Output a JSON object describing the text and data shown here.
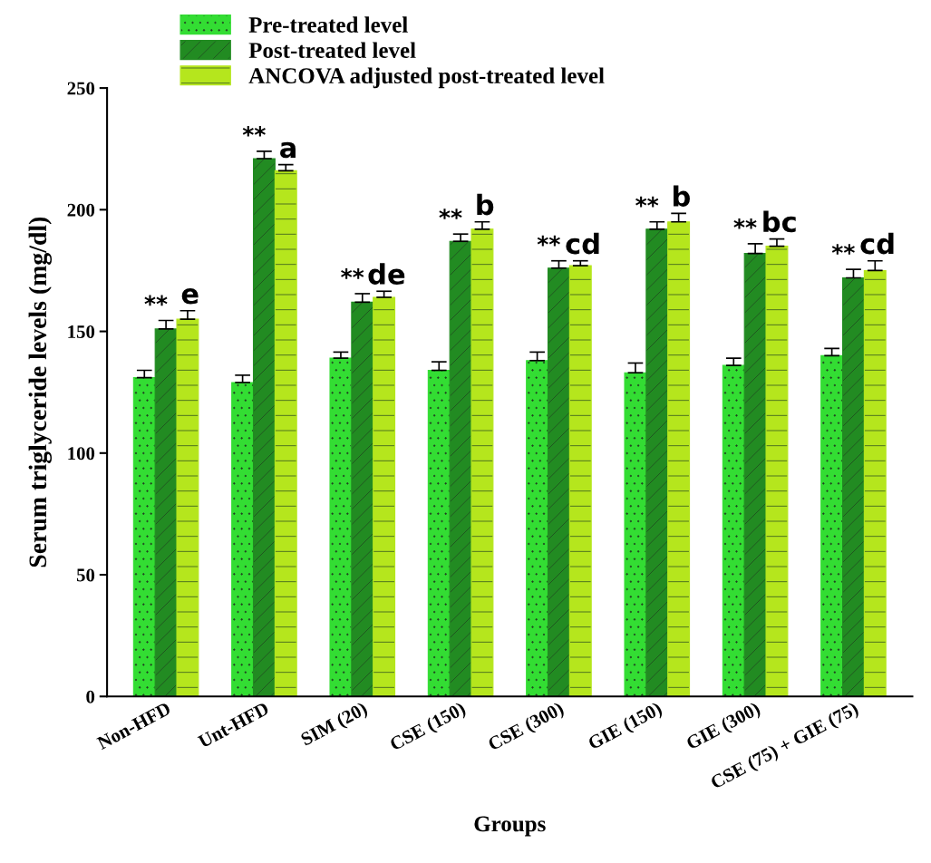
{
  "chart_data": {
    "type": "bar",
    "xlabel": "Groups",
    "ylabel": "Serum triglyceride levels (mg/dl)",
    "categories": [
      "Non-HFD",
      "Unt-HFD",
      "SIM (20)",
      "CSE (150)",
      "CSE (300)",
      "GIE (150)",
      "GIE (300)",
      "CSE (75) + GIE (75)"
    ],
    "series": [
      {
        "name": "Pre-treated level",
        "color": "#33dd33",
        "values": [
          131,
          129,
          139,
          134,
          138,
          133,
          136,
          140
        ],
        "errors": [
          3,
          3,
          2.5,
          3.5,
          3.5,
          4,
          3,
          3
        ]
      },
      {
        "name": "Post-treated level",
        "color": "#228b22",
        "values": [
          151,
          221,
          162,
          187,
          176,
          192,
          182,
          172
        ],
        "errors": [
          3.5,
          3,
          3.5,
          3,
          3,
          3,
          4,
          3.5
        ]
      },
      {
        "name": "ANCOVA adjusted post-treated level",
        "color": "#b5e61d",
        "values": [
          155,
          216,
          164,
          192,
          177,
          195,
          185,
          175
        ],
        "errors": [
          3.5,
          2.5,
          2.5,
          3,
          2,
          3.5,
          3,
          4
        ]
      }
    ],
    "annotations": [
      "**",
      "e",
      "**",
      "a",
      "**",
      "de",
      "**",
      "b",
      "**",
      "cd",
      "**",
      "b",
      "**",
      "bc",
      "**",
      "cd"
    ],
    "ylim": [
      0,
      250
    ],
    "yticks": [
      0,
      50,
      100,
      150,
      200,
      250
    ],
    "grid": false,
    "legend": "top left"
  }
}
